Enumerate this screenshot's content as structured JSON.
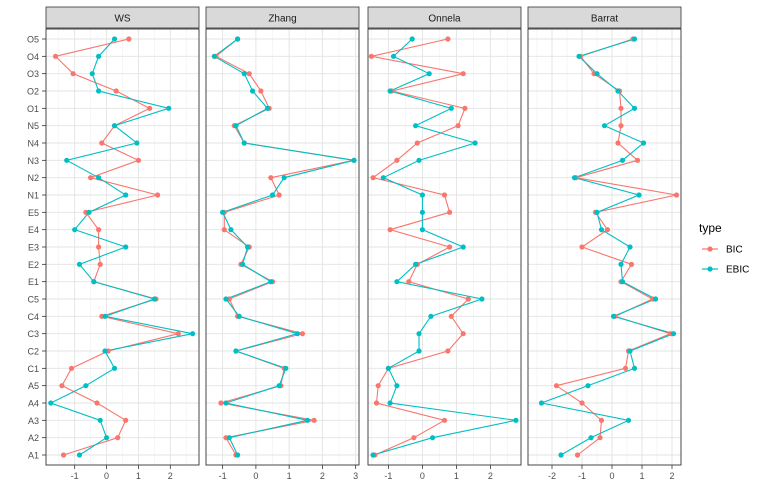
{
  "chart_data": {
    "type": "line",
    "facet_by": "method",
    "panels": [
      "WS",
      "Zhang",
      "Onnela",
      "Barrat"
    ],
    "categories": [
      "A1",
      "A2",
      "A3",
      "A4",
      "A5",
      "C1",
      "C2",
      "C3",
      "C4",
      "C5",
      "E1",
      "E2",
      "E3",
      "E4",
      "E5",
      "N1",
      "N2",
      "N3",
      "N4",
      "N5",
      "O1",
      "O2",
      "O3",
      "O4",
      "O5"
    ],
    "xticks": [
      [
        -1,
        0,
        1,
        2
      ],
      [
        -1,
        0,
        1,
        2,
        3
      ],
      [
        -1,
        0,
        1,
        2
      ],
      [
        -2,
        -1,
        0,
        1,
        2
      ]
    ],
    "xlim": [
      [
        -1.9,
        2.9
      ],
      [
        -1.5,
        3.1
      ],
      [
        -1.6,
        2.9
      ],
      [
        -2.8,
        2.3
      ]
    ],
    "legend": {
      "title": "type",
      "position": "right"
    },
    "series": [
      {
        "name": "BIC",
        "color": "#F8766D",
        "values": [
          [
            -1.35,
            0.35,
            0.6,
            -0.3,
            -1.4,
            -1.1,
            0.05,
            2.25,
            -0.15,
            1.55,
            -0.4,
            -0.2,
            -0.25,
            -0.25,
            -0.65,
            1.6,
            -0.5,
            1.0,
            -0.15,
            0.25,
            1.35,
            0.3,
            -1.05,
            -1.6,
            0.7
          ],
          [
            -0.6,
            -0.9,
            1.75,
            -1.05,
            0.75,
            0.85,
            -0.6,
            1.4,
            -0.55,
            -0.8,
            0.5,
            -0.45,
            -0.2,
            -0.95,
            -0.95,
            0.7,
            0.45,
            2.95,
            -0.35,
            -0.65,
            0.4,
            0.15,
            -0.2,
            -1.2,
            -0.55
          ],
          [
            -1.4,
            -0.25,
            0.65,
            -1.35,
            -1.3,
            -1.0,
            0.75,
            1.2,
            0.85,
            1.35,
            -0.4,
            -0.15,
            0.8,
            -0.95,
            0.8,
            0.65,
            -1.45,
            -0.75,
            -0.15,
            1.05,
            1.25,
            -0.9,
            1.2,
            -1.5,
            0.75
          ],
          [
            -1.15,
            -0.4,
            -0.35,
            -1.0,
            -1.85,
            0.45,
            0.55,
            1.95,
            0.1,
            1.35,
            0.3,
            0.65,
            -1.0,
            -0.15,
            -0.55,
            2.15,
            -1.2,
            0.85,
            0.2,
            0.3,
            0.3,
            0.25,
            -0.6,
            -1.05,
            0.7
          ]
        ]
      },
      {
        "name": "EBIC",
        "color": "#00BFC4",
        "values": [
          [
            -0.85,
            0.0,
            -0.2,
            -1.75,
            -0.65,
            0.25,
            -0.05,
            2.7,
            -0.05,
            1.5,
            -0.4,
            -0.85,
            0.6,
            -1.0,
            -0.55,
            0.6,
            -0.25,
            -1.25,
            0.95,
            0.25,
            1.95,
            -0.25,
            -0.45,
            -0.25,
            0.25
          ],
          [
            -0.55,
            -0.8,
            1.55,
            -0.9,
            0.7,
            0.9,
            -0.6,
            1.25,
            -0.5,
            -0.9,
            0.45,
            -0.4,
            -0.25,
            -0.75,
            -1.0,
            0.5,
            0.85,
            2.95,
            -0.35,
            -0.6,
            0.35,
            -0.1,
            -0.35,
            -1.25,
            -0.55
          ],
          [
            -1.45,
            0.3,
            2.75,
            -0.95,
            -0.75,
            -1.0,
            -0.1,
            -0.1,
            0.25,
            1.75,
            -0.75,
            -0.2,
            1.2,
            0.0,
            0.0,
            0.0,
            -1.15,
            -0.1,
            1.55,
            -0.2,
            0.85,
            -0.95,
            0.2,
            -0.85,
            -0.3
          ],
          [
            -1.7,
            -0.7,
            0.55,
            -2.35,
            -0.8,
            0.75,
            0.6,
            2.05,
            0.05,
            1.45,
            0.35,
            0.3,
            0.6,
            -0.35,
            -0.5,
            0.9,
            -1.25,
            0.35,
            1.05,
            -0.25,
            0.75,
            0.2,
            -0.5,
            -1.1,
            0.75
          ]
        ]
      }
    ]
  }
}
